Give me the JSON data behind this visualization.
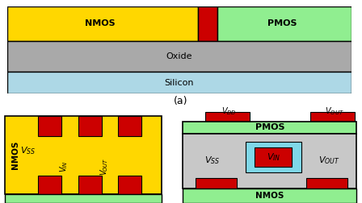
{
  "top_panel": {
    "nmos_color": "#FFD700",
    "pmos_color": "#90EE90",
    "gate_color": "#CC0000",
    "oxide_color": "#A9A9A9",
    "silicon_color": "#ADD8E6",
    "border_color": "#000000",
    "nmos_label": "NMOS",
    "pmos_label": "PMOS",
    "oxide_label": "Oxide",
    "silicon_label": "Silicon"
  },
  "bottom_left": {
    "nmos_body_color": "#FFD700",
    "gate_color": "#CC0000",
    "nmos_label": "NMOS",
    "green_bar_color": "#90EE90"
  },
  "bottom_right": {
    "pmos_bar_color": "#90EE90",
    "red_color": "#CC0000",
    "cyan_color": "#7FD8E8",
    "gray_color": "#C8C8C8",
    "pmos_label": "PMOS",
    "nmos_label": "NMOS"
  },
  "label_a": "(a)",
  "bg_color": "#FFFFFF"
}
